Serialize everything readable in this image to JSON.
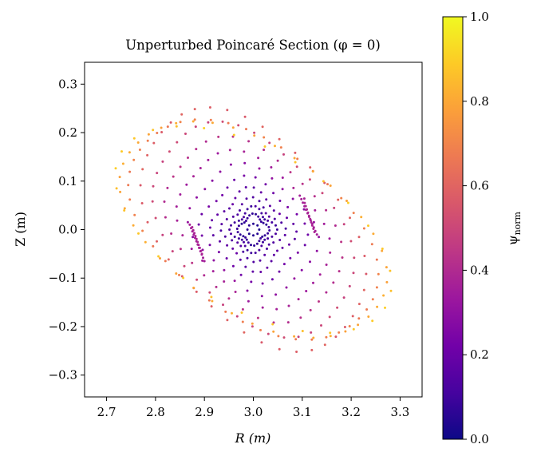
{
  "chart_data": {
    "type": "scatter",
    "title": "Unperturbed Poincaré Section  (φ = 0)",
    "xlabel": "R (m)",
    "ylabel": "Z (m)",
    "xlim": [
      2.655,
      3.345
    ],
    "ylim": [
      -0.345,
      0.345
    ],
    "x_ticks": [
      "2.7",
      "2.8",
      "2.9",
      "3.0",
      "3.1",
      "3.2",
      "3.3"
    ],
    "y_ticks": [
      "−0.3",
      "−0.2",
      "−0.1",
      "0.0",
      "0.1",
      "0.2",
      "0.3"
    ],
    "grid": false,
    "legend": "none",
    "colormap": "plasma",
    "colorbar": {
      "label": "ψ_norm",
      "range": [
        0.0,
        1.0
      ],
      "ticks": [
        "0.0",
        "0.2",
        "0.4",
        "0.6",
        "0.8",
        "1.0"
      ],
      "colors": [
        "#0d0887",
        "#46039f",
        "#7201a8",
        "#9c179e",
        "#bd3786",
        "#d8576b",
        "#ed7953",
        "#fb9f3a",
        "#fdca26",
        "#f0f921"
      ]
    },
    "magnetic_axis": {
      "R": 3.0,
      "Z": 0.0
    },
    "flux_surfaces": [
      {
        "a": 0.012,
        "elong": 1.0,
        "tilt": 0.0,
        "square": 0.0,
        "psi": 0.03,
        "points": 8
      },
      {
        "a": 0.028,
        "elong": 1.0,
        "tilt": 0.0,
        "square": 0.18,
        "psi": 0.06,
        "points": 30
      },
      {
        "a": 0.04,
        "elong": 1.0,
        "tilt": 0.0,
        "square": 0.22,
        "psi": 0.09,
        "points": 34
      },
      {
        "a": 0.055,
        "elong": 1.0,
        "tilt": 0.05,
        "square": 0.22,
        "psi": 0.12,
        "points": 30
      },
      {
        "a": 0.075,
        "elong": 1.0,
        "tilt": 0.08,
        "square": 0.18,
        "psi": 0.16,
        "points": 34
      },
      {
        "a": 0.1,
        "elong": 1.0,
        "tilt": 0.1,
        "square": 0.12,
        "psi": 0.2,
        "points": 30
      },
      {
        "a": 0.125,
        "elong": 1.03,
        "tilt": 0.15,
        "square": 0.08,
        "psi": 0.28,
        "points": 28
      },
      {
        "a": 0.15,
        "elong": 1.05,
        "tilt": 0.2,
        "square": 0.06,
        "psi": 0.34,
        "points": 34
      },
      {
        "a": 0.175,
        "elong": 1.07,
        "tilt": 0.22,
        "square": 0.05,
        "psi": 0.4,
        "points": 36
      },
      {
        "a": 0.2,
        "elong": 1.1,
        "tilt": 0.25,
        "square": 0.04,
        "psi": 0.48,
        "points": 40
      },
      {
        "a": 0.225,
        "elong": 1.12,
        "tilt": 0.27,
        "square": 0.03,
        "psi": 0.56,
        "points": 40
      },
      {
        "a": 0.255,
        "elong": 0.9,
        "tilt": 0.3,
        "square": 0.02,
        "psi": 0.66,
        "points": 44
      },
      {
        "a": 0.275,
        "elong": 0.82,
        "tilt": 0.32,
        "square": 0.02,
        "psi": 0.78,
        "points": 40
      },
      {
        "a": 0.29,
        "elong": 0.75,
        "tilt": 0.35,
        "square": 0.0,
        "psi": 0.86,
        "points": 28
      }
    ],
    "islands": [
      {
        "R": [
          2.87,
          2.9
        ],
        "Z": [
          0.01,
          -0.065
        ],
        "psi": 0.36,
        "points": 12
      },
      {
        "R": [
          2.875,
          2.895
        ],
        "Z": [
          0.005,
          -0.05
        ],
        "psi": 0.38,
        "points": 10
      },
      {
        "R": [
          3.095,
          3.13
        ],
        "Z": [
          0.07,
          -0.01
        ],
        "psi": 0.36,
        "points": 12
      },
      {
        "R": [
          3.105,
          3.125
        ],
        "Z": [
          0.055,
          -0.005
        ],
        "psi": 0.38,
        "points": 10
      }
    ]
  }
}
